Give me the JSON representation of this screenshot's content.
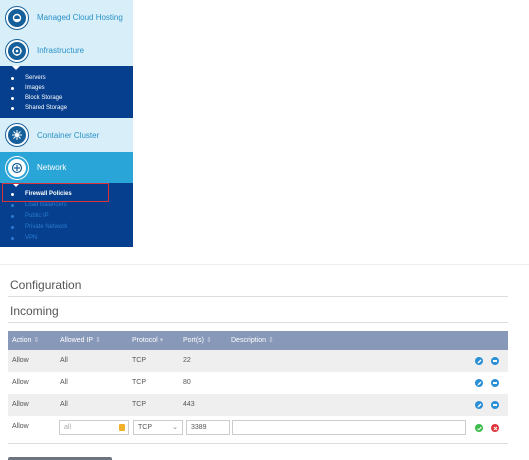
{
  "sidebar": {
    "sections": [
      {
        "label": "Managed Cloud Hosting",
        "icon": "cloud-icon"
      },
      {
        "label": "Infrastructure",
        "icon": "infrastructure-icon",
        "items": [
          "Servers",
          "Images",
          "Block Storage",
          "Shared Storage"
        ]
      },
      {
        "label": "Container Cluster",
        "icon": "container-icon"
      },
      {
        "label": "Network",
        "icon": "network-icon",
        "items": [
          "Firewall Policies",
          "Load Balancers",
          "Public IP",
          "Private Network",
          "VPN"
        ]
      }
    ]
  },
  "config": {
    "title": "Configuration",
    "subtitle": "Incoming",
    "columns": [
      "Action",
      "Allowed IP",
      "Protocol",
      "Port(s)",
      "Description"
    ],
    "rows": [
      {
        "action": "Allow",
        "ip": "All",
        "protocol": "TCP",
        "port": "22",
        "description": ""
      },
      {
        "action": "Allow",
        "ip": "All",
        "protocol": "TCP",
        "port": "80",
        "description": ""
      },
      {
        "action": "Allow",
        "ip": "All",
        "protocol": "TCP",
        "port": "443",
        "description": ""
      }
    ],
    "new_row": {
      "action": "Allow",
      "ip_placeholder": "all",
      "protocol": "TCP",
      "port": "3389",
      "description": ""
    }
  },
  "colors": {
    "sidebar_dark": "#053f8e",
    "sidebar_light": "#d8eef8",
    "sidebar_active": "#2aa5d8",
    "table_header": "#8898b8",
    "highlight_box": "#d9343a"
  }
}
